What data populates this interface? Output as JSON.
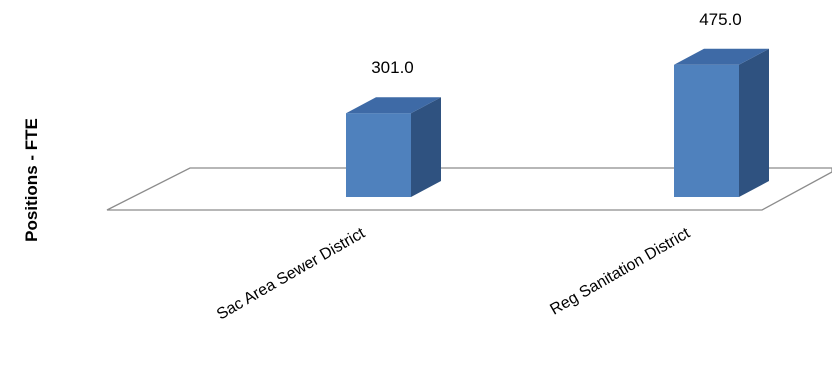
{
  "chart_data": {
    "type": "bar",
    "title": "",
    "xlabel": "",
    "ylabel": "Positions - FTE",
    "categories": [
      "Sac Area Sewer District",
      "Reg Sanitation District"
    ],
    "values": [
      301.0,
      475.0
    ],
    "value_labels": [
      "301.0",
      "475.0"
    ],
    "three_d": true,
    "grid": false,
    "legend": "none",
    "colors": {
      "bar_front": "#4F81BD",
      "bar_side": "#2F5280",
      "bar_top": "#3E6AA6",
      "floor_edge": "#8C8C8C"
    }
  }
}
